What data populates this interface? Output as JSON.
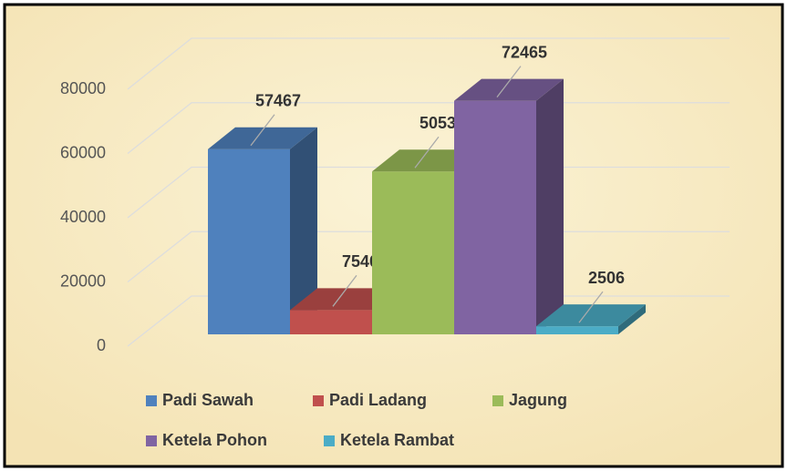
{
  "chart_data": {
    "type": "bar3d",
    "series": [
      {
        "name": "Padi Sawah",
        "color": "#4f81bd",
        "values": [
          57467
        ]
      },
      {
        "name": "Padi Ladang",
        "color": "#c0504d",
        "values": [
          7540
        ]
      },
      {
        "name": "Jagung",
        "color": "#9bbb59",
        "values": [
          50533
        ]
      },
      {
        "name": "Ketela Pohon",
        "color": "#8064a2",
        "values": [
          72465
        ]
      },
      {
        "name": "Ketela Rambat",
        "color": "#4bacc6",
        "values": [
          2506
        ]
      }
    ],
    "ylim": [
      0,
      80000
    ],
    "yticks": [
      0,
      20000,
      40000,
      60000,
      80000
    ],
    "grid": true,
    "legend": "bottom"
  }
}
